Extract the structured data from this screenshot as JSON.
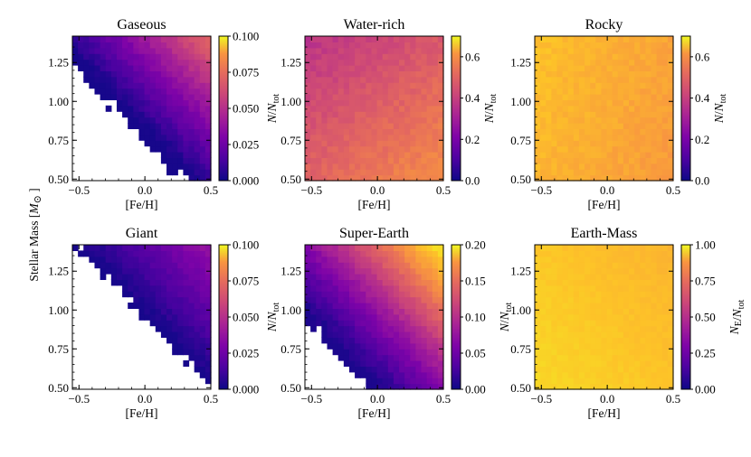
{
  "chart_data": {
    "type": "heatmap",
    "grid": {
      "nx": 25,
      "ny": 25
    },
    "colormap": "plasma",
    "xlabel": "[Fe/H]",
    "ylabel": "Stellar Mass [M⊙]",
    "xlim": [
      -0.55,
      0.5
    ],
    "ylim": [
      0.49,
      1.42
    ],
    "x_ticks": [
      "−0.5",
      "0.0",
      "0.5"
    ],
    "y_ticks": [
      "0.50",
      "0.75",
      "1.00",
      "1.25"
    ],
    "panels": [
      {
        "title": "Gaseous",
        "kind": "gaseous",
        "vmin": 0.0,
        "vmax": 0.1,
        "cbar_ticks": [
          "0.000",
          "0.025",
          "0.050",
          "0.075",
          "0.100"
        ],
        "cbar_label": "N/N_tot"
      },
      {
        "title": "Water-rich",
        "kind": "water",
        "vmin": 0.0,
        "vmax": 0.7,
        "cbar_ticks": [
          "0.0",
          "0.2",
          "0.4",
          "0.6"
        ],
        "cbar_label": "N/N_tot"
      },
      {
        "title": "Rocky",
        "kind": "rocky",
        "vmin": 0.0,
        "vmax": 0.7,
        "cbar_ticks": [
          "0.0",
          "0.2",
          "0.4",
          "0.6"
        ],
        "cbar_label": "N/N_tot"
      },
      {
        "title": "Giant",
        "kind": "giant",
        "vmin": 0.0,
        "vmax": 0.1,
        "cbar_ticks": [
          "0.000",
          "0.025",
          "0.050",
          "0.075",
          "0.100"
        ],
        "cbar_label": "N/N_tot"
      },
      {
        "title": "Super-Earth",
        "kind": "super",
        "vmin": 0.0,
        "vmax": 0.2,
        "cbar_ticks": [
          "0.00",
          "0.05",
          "0.10",
          "0.15",
          "0.20"
        ],
        "cbar_label": "N/N_tot"
      },
      {
        "title": "Earth-Mass",
        "kind": "earth",
        "vmin": 0.0,
        "vmax": 1.0,
        "cbar_ticks": [
          "0.00",
          "0.25",
          "0.50",
          "0.75",
          "1.00"
        ],
        "cbar_label": "N_E/N_tot"
      }
    ]
  }
}
